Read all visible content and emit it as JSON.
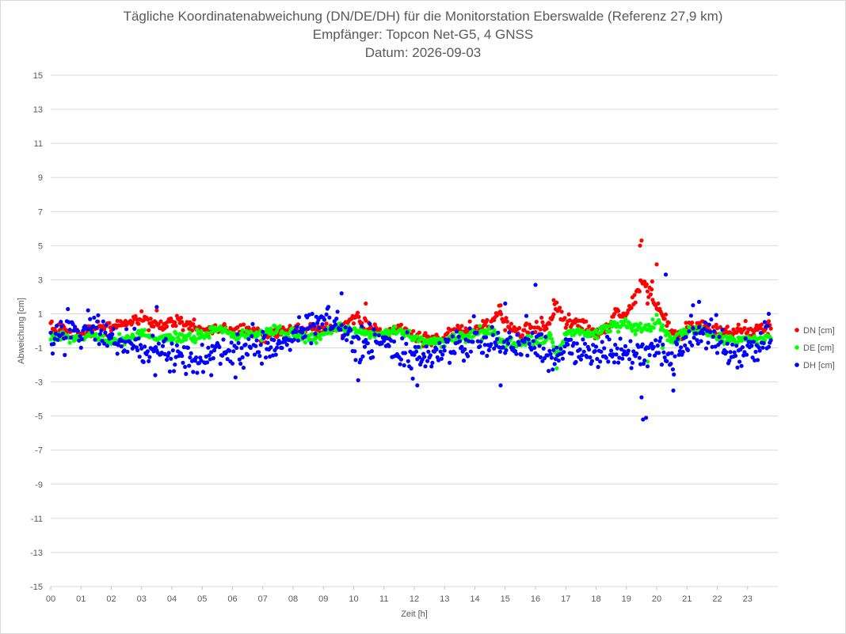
{
  "chart_data": {
    "type": "scatter",
    "title": "Tägliche Koordinatenabweichung (DN/DE/DH) für die Monitorstation Eberswalde (Referenz 27,9 km)",
    "subtitle": "Empfänger: Topcon Net-G5, 4 GNSS",
    "date_line": "Datum: 2026-09-03",
    "xlabel": "Zeit [h]",
    "ylabel": "Abweichung [cm]",
    "xlim": [
      0,
      24
    ],
    "ylim": [
      -15,
      15
    ],
    "x_ticks": [
      "00",
      "01",
      "02",
      "03",
      "04",
      "05",
      "06",
      "07",
      "08",
      "09",
      "10",
      "11",
      "12",
      "13",
      "14",
      "15",
      "16",
      "17",
      "18",
      "19",
      "20",
      "21",
      "22",
      "23"
    ],
    "y_ticks": [
      15,
      13,
      11,
      9,
      7,
      5,
      3,
      1,
      -1,
      -3,
      -5,
      -7,
      -9,
      -11,
      -13,
      -15
    ],
    "grid": "horizontal",
    "legend_position": "right",
    "sampling": "every 2 minutes (approx.)",
    "series": [
      {
        "name": "DN [cm]",
        "color": "#ff0000",
        "anchors": [
          [
            0,
            0.1
          ],
          [
            0.5,
            0.0
          ],
          [
            1,
            -0.2
          ],
          [
            1.5,
            0.2
          ],
          [
            2,
            0.3
          ],
          [
            2.5,
            0.4
          ],
          [
            3,
            0.8
          ],
          [
            3.5,
            0.3
          ],
          [
            4,
            0.5
          ],
          [
            4.5,
            0.4
          ],
          [
            5,
            0.0
          ],
          [
            5.5,
            0.1
          ],
          [
            6,
            0.0
          ],
          [
            6.5,
            0.0
          ],
          [
            7,
            -0.3
          ],
          [
            7.5,
            -0.1
          ],
          [
            8,
            0.0
          ],
          [
            8.5,
            0.1
          ],
          [
            9,
            0.1
          ],
          [
            9.5,
            0.1
          ],
          [
            10,
            0.7
          ],
          [
            10.5,
            0.3
          ],
          [
            11,
            -0.3
          ],
          [
            11.5,
            0.2
          ],
          [
            12,
            -0.3
          ],
          [
            12.5,
            -0.5
          ],
          [
            13,
            -0.4
          ],
          [
            13.5,
            0.0
          ],
          [
            14,
            0.0
          ],
          [
            14.5,
            0.4
          ],
          [
            14.8,
            1.1
          ],
          [
            15,
            0.3
          ],
          [
            15.5,
            0.0
          ],
          [
            16,
            0.1
          ],
          [
            16.5,
            0.5
          ],
          [
            16.7,
            1.5
          ],
          [
            17,
            0.5
          ],
          [
            17.5,
            0.4
          ],
          [
            18,
            -0.3
          ],
          [
            18.4,
            0.2
          ],
          [
            18.6,
            0.9
          ],
          [
            19,
            1.1
          ],
          [
            19.3,
            2.0
          ],
          [
            19.5,
            3.0
          ],
          [
            19.6,
            2.6
          ],
          [
            19.8,
            2.4
          ],
          [
            20,
            1.4
          ],
          [
            20.3,
            0.6
          ],
          [
            20.5,
            -0.2
          ],
          [
            20.8,
            -0.4
          ],
          [
            21,
            0.2
          ],
          [
            21.5,
            0.3
          ],
          [
            22,
            -0.1
          ],
          [
            22.5,
            0.1
          ],
          [
            23,
            0.0
          ],
          [
            23.5,
            0.2
          ],
          [
            23.8,
            0.2
          ]
        ],
        "outliers": [
          [
            19.45,
            5.0
          ],
          [
            19.5,
            5.3
          ],
          [
            20,
            3.9
          ],
          [
            19.85,
            2.9
          ],
          [
            20.05,
            1.6
          ],
          [
            19.7,
            1.6
          ],
          [
            14.85,
            1.5
          ],
          [
            10.4,
            1.6
          ],
          [
            3.5,
            1.2
          ],
          [
            16.6,
            1.8
          ]
        ]
      },
      {
        "name": "DE [cm]",
        "color": "#00ff00",
        "anchors": [
          [
            0,
            -0.3
          ],
          [
            0.5,
            -0.3
          ],
          [
            1,
            -0.5
          ],
          [
            1.5,
            -0.3
          ],
          [
            2,
            -0.6
          ],
          [
            2.5,
            -0.5
          ],
          [
            3,
            -0.2
          ],
          [
            3.5,
            -0.5
          ],
          [
            4,
            -0.4
          ],
          [
            4.5,
            -0.4
          ],
          [
            5,
            -0.3
          ],
          [
            5.5,
            0.2
          ],
          [
            6,
            -0.3
          ],
          [
            6.5,
            -0.3
          ],
          [
            7,
            -0.1
          ],
          [
            7.5,
            0.0
          ],
          [
            8,
            -0.3
          ],
          [
            8.5,
            -0.4
          ],
          [
            9,
            -0.2
          ],
          [
            9.5,
            0.3
          ],
          [
            10,
            0.0
          ],
          [
            10.5,
            -0.2
          ],
          [
            11,
            -0.2
          ],
          [
            11.5,
            0.0
          ],
          [
            12,
            -0.4
          ],
          [
            12.5,
            -0.7
          ],
          [
            13,
            -0.6
          ],
          [
            13.5,
            -0.4
          ],
          [
            14,
            -0.2
          ],
          [
            14.5,
            0.0
          ],
          [
            15,
            -0.7
          ],
          [
            15.5,
            -0.7
          ],
          [
            16,
            -0.6
          ],
          [
            16.5,
            -0.6
          ],
          [
            16.7,
            -1.5
          ],
          [
            17,
            -0.3
          ],
          [
            17.5,
            -0.1
          ],
          [
            18,
            -0.2
          ],
          [
            18.5,
            0.3
          ],
          [
            19,
            0.4
          ],
          [
            19.5,
            0.1
          ],
          [
            20,
            0.5
          ],
          [
            20.5,
            -0.5
          ],
          [
            21,
            0.0
          ],
          [
            21.5,
            0.0
          ],
          [
            22,
            -0.4
          ],
          [
            22.5,
            -0.5
          ],
          [
            23,
            -0.5
          ],
          [
            23.5,
            -0.5
          ],
          [
            23.8,
            -0.4
          ]
        ],
        "outliers": [
          [
            16.7,
            -2.2
          ],
          [
            19.3,
            -0.2
          ],
          [
            19.7,
            -1.8
          ],
          [
            20.2,
            -1.0
          ]
        ]
      },
      {
        "name": "DH [cm]",
        "color": "#0000ff",
        "anchors": [
          [
            0,
            -0.5
          ],
          [
            0.5,
            0.1
          ],
          [
            1,
            -0.3
          ],
          [
            1.5,
            0.3
          ],
          [
            2,
            -0.6
          ],
          [
            2.5,
            -0.8
          ],
          [
            3,
            -1.0
          ],
          [
            3.5,
            -1.1
          ],
          [
            4,
            -1.3
          ],
          [
            4.5,
            -1.6
          ],
          [
            5,
            -1.8
          ],
          [
            5.5,
            -1.2
          ],
          [
            6,
            -1.0
          ],
          [
            6.5,
            -1.2
          ],
          [
            7,
            -1.0
          ],
          [
            7.5,
            -0.8
          ],
          [
            8,
            -0.4
          ],
          [
            8.5,
            0.6
          ],
          [
            9,
            0.6
          ],
          [
            9.5,
            0.4
          ],
          [
            10,
            -0.8
          ],
          [
            10.5,
            -1.0
          ],
          [
            11,
            -0.6
          ],
          [
            11.5,
            -1.4
          ],
          [
            12,
            -1.4
          ],
          [
            12.5,
            -1.2
          ],
          [
            13,
            -1.0
          ],
          [
            13.5,
            -0.8
          ],
          [
            14,
            -0.6
          ],
          [
            14.5,
            -0.6
          ],
          [
            15,
            -0.9
          ],
          [
            15.5,
            -0.9
          ],
          [
            16,
            -0.6
          ],
          [
            16.5,
            -1.8
          ],
          [
            17,
            -1.0
          ],
          [
            17.5,
            -1.3
          ],
          [
            18,
            -1.2
          ],
          [
            18.5,
            -1.5
          ],
          [
            19,
            -1.2
          ],
          [
            19.5,
            -1.7
          ],
          [
            20,
            -1.0
          ],
          [
            20.5,
            -1.6
          ],
          [
            21,
            -0.6
          ],
          [
            21.5,
            0.0
          ],
          [
            22,
            -0.5
          ],
          [
            22.5,
            -1.2
          ],
          [
            23,
            -1.2
          ],
          [
            23.5,
            -0.8
          ],
          [
            23.8,
            -0.6
          ]
        ],
        "outliers": [
          [
            3.5,
            1.4
          ],
          [
            3.45,
            -2.6
          ],
          [
            5.3,
            -2.6
          ],
          [
            9.6,
            2.2
          ],
          [
            10.15,
            -2.9
          ],
          [
            12.1,
            -3.2
          ],
          [
            14.85,
            -3.2
          ],
          [
            15,
            1.6
          ],
          [
            16,
            2.7
          ],
          [
            19.5,
            -3.9
          ],
          [
            19.55,
            -5.2
          ],
          [
            19.65,
            -5.1
          ],
          [
            20.3,
            3.3
          ],
          [
            20.55,
            -3.5
          ],
          [
            21.4,
            1.7
          ],
          [
            21.2,
            1.5
          ],
          [
            23.7,
            1.0
          ],
          [
            11.95,
            -2.8
          ]
        ]
      }
    ]
  }
}
